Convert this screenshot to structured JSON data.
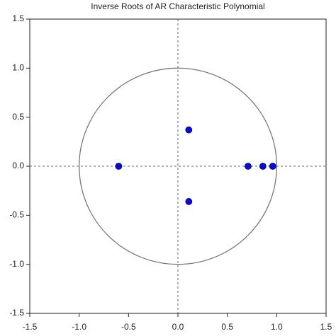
{
  "chart_data": {
    "type": "scatter",
    "title": "Inverse Roots of AR Characteristic Polynomial",
    "x": [
      -0.6,
      0.11,
      0.11,
      0.71,
      0.86,
      0.96
    ],
    "values": [
      0,
      0.37,
      -0.36,
      0,
      0,
      0
    ],
    "color": "#0a0ad0",
    "xlim": [
      -1.5,
      1.5
    ],
    "ylim": [
      -1.5,
      1.5
    ],
    "xticks": [
      -1.5,
      {
        "value": -1,
        "label": "-1.0"
      },
      -0.5,
      {
        "value": 0,
        "label": "0.0"
      },
      0.5,
      {
        "value": 1,
        "label": "1.0"
      },
      1.5
    ],
    "yticks": [
      -1.5,
      {
        "value": -1,
        "label": "-1.0"
      },
      -0.5,
      {
        "value": 0,
        "label": "0.0"
      },
      0.5,
      {
        "value": 1,
        "label": "1.0"
      },
      1.5
    ],
    "unit_circle": true,
    "zero_lines": true
  }
}
